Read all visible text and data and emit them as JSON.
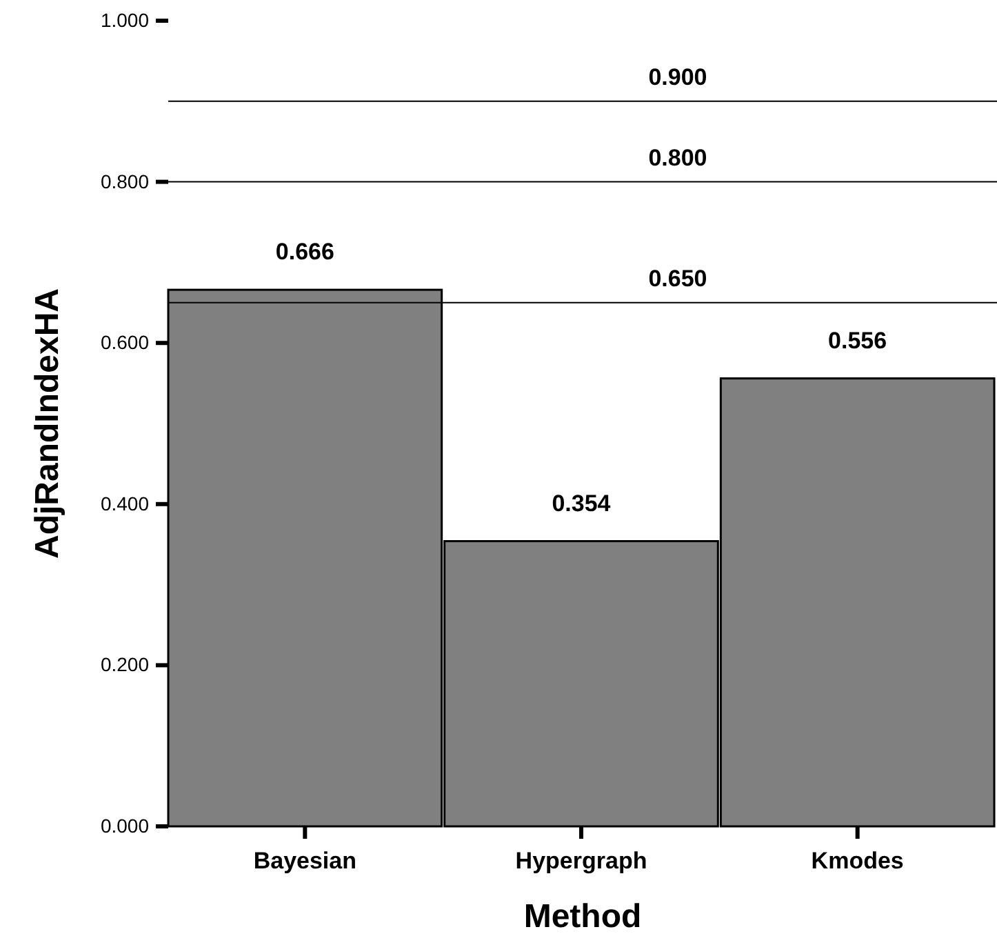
{
  "chart_data": {
    "type": "bar",
    "xlabel": "Method",
    "ylabel": "AdjRandIndexHA",
    "categories": [
      "Bayesian",
      "Hypergraph",
      "Kmodes"
    ],
    "values": [
      0.666,
      0.354,
      0.556
    ],
    "color": "#808080",
    "ylim": [
      0,
      1
    ],
    "yticks": [
      {
        "value": 0,
        "label": "0.000"
      },
      {
        "value": 0.2,
        "label": "0.200"
      },
      {
        "value": 0.4,
        "label": "0.400"
      },
      {
        "value": 0.6,
        "label": "0.600"
      },
      {
        "value": 0.8,
        "label": "0.800"
      },
      {
        "value": 1,
        "label": "1.000"
      }
    ],
    "ref_lines": [
      {
        "axis": "y",
        "value": 0.9,
        "label": "0.900",
        "color": "#000000"
      },
      {
        "axis": "y",
        "value": 0.8,
        "label": "0.800",
        "color": "#000000"
      },
      {
        "axis": "y",
        "value": 0.65,
        "label": "0.650",
        "color": "#000000"
      }
    ],
    "data_labels": true
  }
}
